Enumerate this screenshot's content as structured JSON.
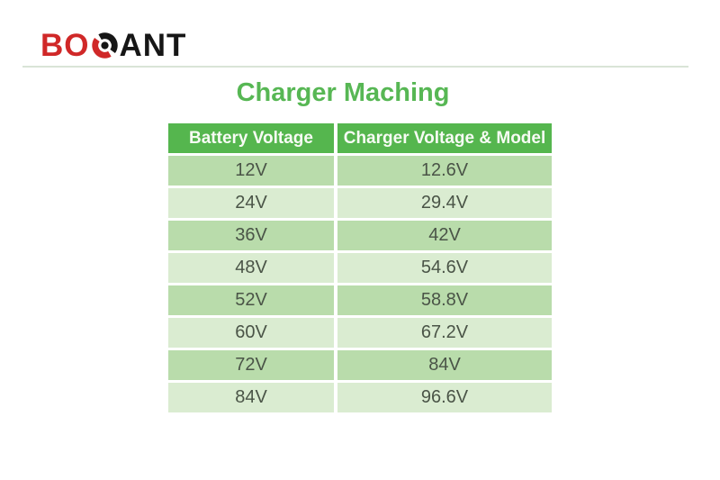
{
  "logo": {
    "prefix": "BO",
    "suffix": "ANT",
    "icon": "target-icon",
    "red": "#d02828",
    "black": "#161616"
  },
  "title": "Charger Maching",
  "chart_data": {
    "type": "table",
    "title": "Charger Maching",
    "columns": [
      "Battery Voltage",
      "Charger Voltage & Model"
    ],
    "rows": [
      [
        "12V",
        "12.6V"
      ],
      [
        "24V",
        "29.4V"
      ],
      [
        "36V",
        "42V"
      ],
      [
        "48V",
        "54.6V"
      ],
      [
        "52V",
        "58.8V"
      ],
      [
        "60V",
        "67.2V"
      ],
      [
        "72V",
        "84V"
      ],
      [
        "84V",
        "96.6V"
      ]
    ],
    "layout": {
      "header_background": "#55b64e",
      "row_dark_background": "#b9dcab",
      "row_light_background": "#daecd1",
      "cell_text_color": "#4a5447",
      "title_color": "#57b754",
      "alternating_rows": true
    }
  }
}
